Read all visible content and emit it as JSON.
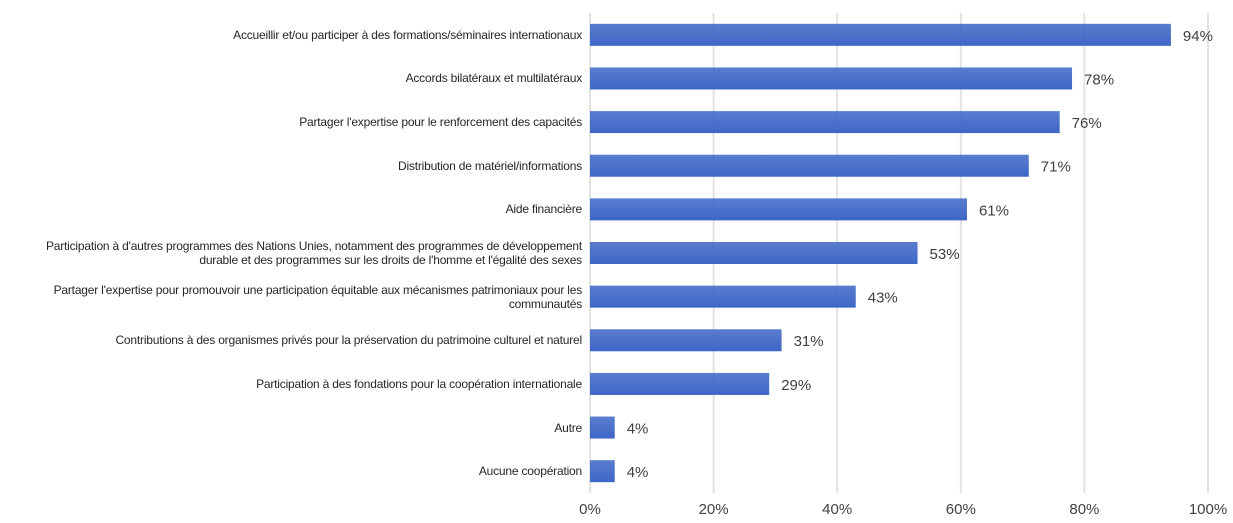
{
  "chart_data": {
    "type": "bar",
    "orientation": "horizontal",
    "categories": [
      "Accueillir et/ou participer à des formations/séminaires internationaux",
      "Accords bilatéraux et multilatéraux",
      "Partager l'expertise pour le renforcement des capacités",
      "Distribution de matériel/informations",
      "Aide financière",
      "Participation à d'autres programmes des Nations Unies, notamment des programmes de développement durable et des programmes sur les droits de l'homme et l'égalité des sexes",
      "Partager l'expertise pour promouvoir une participation équitable aux mécanismes patrimoniaux pour les communautés",
      "Contributions à des organismes privés pour la préservation du patrimoine culturel et naturel",
      "Participation à des fondations pour la coopération internationale",
      "Autre",
      "Aucune coopération"
    ],
    "values": [
      94,
      78,
      76,
      71,
      61,
      53,
      43,
      31,
      29,
      4,
      4
    ],
    "value_labels": [
      "94%",
      "78%",
      "76%",
      "71%",
      "61%",
      "53%",
      "43%",
      "31%",
      "29%",
      "4%",
      "4%"
    ],
    "color": "#3d66c6",
    "xlim": [
      0,
      100
    ],
    "xticks": [
      {
        "value": 0,
        "label": "0%"
      },
      {
        "value": 20,
        "label": "20%"
      },
      {
        "value": 40,
        "label": "40%"
      },
      {
        "value": 60,
        "label": "60%"
      },
      {
        "value": 80,
        "label": "80%"
      },
      {
        "value": 100,
        "label": "100%"
      }
    ],
    "grid": true
  }
}
